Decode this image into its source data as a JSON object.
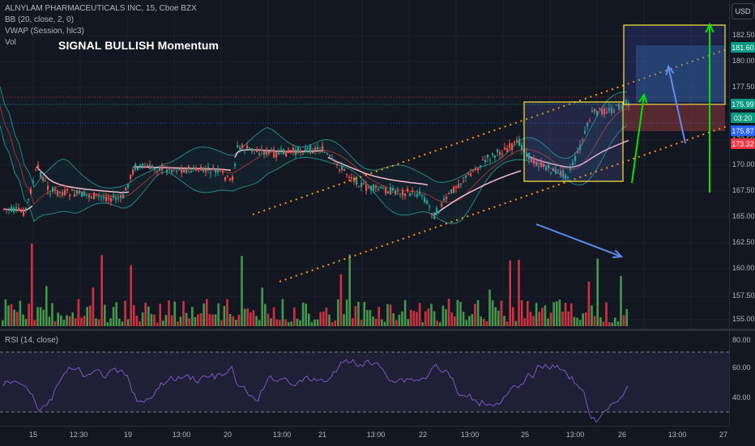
{
  "legend": {
    "symbol": "ALNYLAM PHARMACEUTICALS INC, 15, Cboe BZX",
    "bb": "BB (20, close, 2, 0)",
    "vwap": "VWAP (Session, hlc3)",
    "vol": "Vol"
  },
  "annotation": "SIGNAL BULLISH Momentum",
  "currency": "USD",
  "rsi_legend": "RSI (14, close)",
  "price_axis": {
    "ticks": [
      "182.50",
      "180.00",
      "177.50",
      "175.00",
      "172.50",
      "170.00",
      "167.50",
      "165.00",
      "162.50",
      "160.00",
      "157.50",
      "155.00"
    ],
    "tags": [
      {
        "text": "181.60",
        "color": "#089981"
      },
      {
        "text": "175.99",
        "color": "#089981"
      },
      {
        "text": "03:20",
        "color": "#089981"
      },
      {
        "text": "175.87",
        "color": "#2962ff"
      },
      {
        "text": "173.32",
        "color": "#f23645"
      }
    ]
  },
  "rsi_axis": {
    "ticks": [
      "80.00",
      "60.00",
      "40.00"
    ]
  },
  "time_axis": [
    "15",
    "12:30",
    "19",
    "13:00",
    "20",
    "13:00",
    "21",
    "13:00",
    "22",
    "13:00",
    "25",
    "13:00",
    "26",
    "13:00",
    "27"
  ],
  "colors": {
    "up": "#26a69a",
    "down": "#ef5350",
    "vol_up": "#4caf50",
    "vol_down": "#f23645",
    "bb_band": "#26a69a",
    "vwap": "#f8bbd0",
    "rsi": "#7e57c2",
    "channel": "#ff9800",
    "box": "#ffeb3b",
    "arrow_blue": "#5b8def",
    "arrow_green": "#00e600"
  }
}
